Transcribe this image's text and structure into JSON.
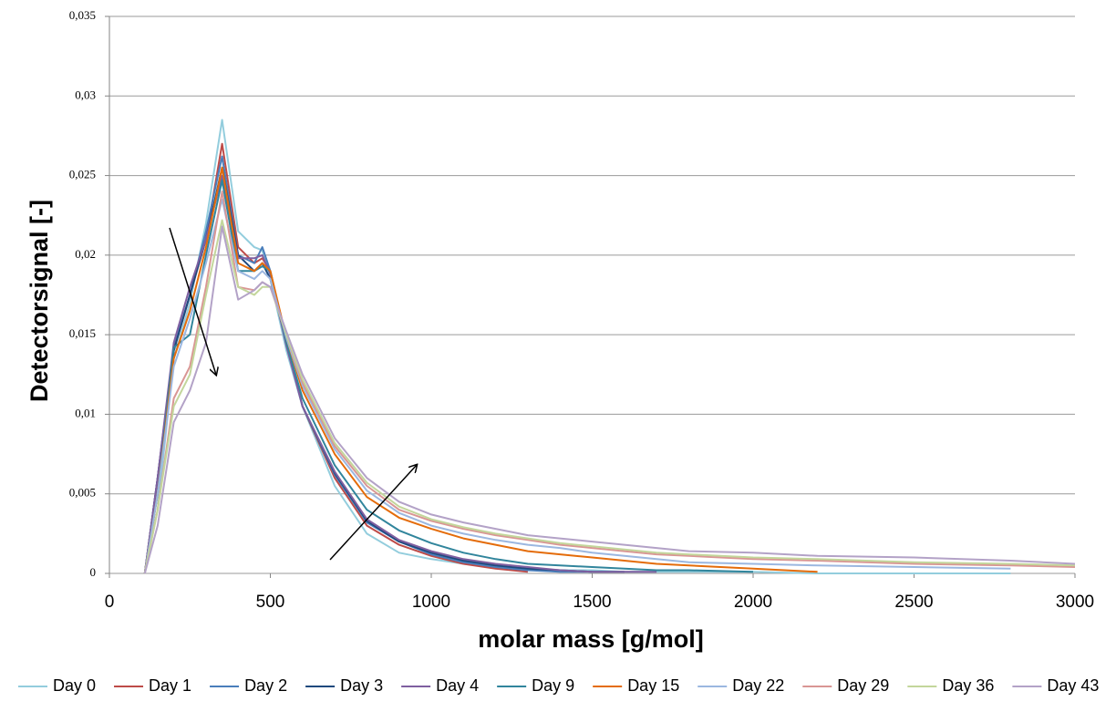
{
  "chart_data": {
    "type": "line",
    "x_label": "molar mass [g/mol]",
    "y_label": "Detectorsignal [-]",
    "xlim": [
      0,
      3000
    ],
    "xticks": [
      0,
      500,
      1000,
      1500,
      2000,
      2500,
      3000
    ],
    "ylim": [
      0,
      0.035
    ],
    "yticks": [
      0,
      {
        "value": 0.005,
        "label": "0,005"
      },
      {
        "value": 0.01,
        "label": "0,01"
      },
      {
        "value": 0.015,
        "label": "0,015"
      },
      {
        "value": 0.02,
        "label": "0,02"
      },
      {
        "value": 0.025,
        "label": "0,025"
      },
      {
        "value": 0.03,
        "label": "0,03"
      },
      {
        "value": 0.035,
        "label": "0,035"
      }
    ],
    "grid": true,
    "legend": "bottom",
    "x": [
      110,
      150,
      200,
      250,
      300,
      350,
      400,
      450,
      475,
      500,
      550,
      600,
      700,
      800,
      900,
      1000,
      1100,
      1200,
      1300,
      1400,
      1500,
      1600,
      1700,
      1800,
      2000,
      2200,
      2500,
      2800,
      3000
    ],
    "series": [
      {
        "name": "Day 0",
        "color": "#93cddd",
        "values": [
          null,
          0.004,
          0.0135,
          0.017,
          0.022,
          0.0285,
          0.0215,
          0.0205,
          0.0203,
          0.0185,
          0.014,
          0.0105,
          0.0055,
          0.0025,
          0.0013,
          0.0009,
          0.0006,
          0.0004,
          0.0003,
          0.0002,
          0.0002,
          0.0001,
          0.0001,
          0.0001,
          0.0001,
          0,
          0,
          0,
          null
        ]
      },
      {
        "name": "Day 1",
        "color": "#be4b48",
        "values": [
          0,
          0.006,
          0.014,
          0.0175,
          0.021,
          0.027,
          0.0205,
          0.0195,
          0.0198,
          0.019,
          0.0145,
          0.0105,
          0.006,
          0.003,
          0.0018,
          0.0011,
          0.0006,
          0.0003,
          0.0001,
          null,
          null,
          null,
          null,
          null,
          null,
          null,
          null,
          null,
          null
        ]
      },
      {
        "name": "Day 2",
        "color": "#4a7ebb",
        "values": [
          0,
          0.006,
          0.0142,
          0.0175,
          0.0215,
          0.0262,
          0.02,
          0.0195,
          0.0205,
          0.019,
          0.0145,
          0.0105,
          0.0062,
          0.0032,
          0.002,
          0.0012,
          0.0007,
          0.0004,
          0.0002,
          0.0001,
          0.0001,
          null,
          null,
          null,
          null,
          null,
          null,
          null,
          null
        ]
      },
      {
        "name": "Day 3",
        "color": "#1f497d",
        "values": [
          0,
          0.006,
          0.014,
          0.0175,
          0.021,
          0.0255,
          0.02,
          0.019,
          0.0195,
          0.0185,
          0.0145,
          0.0105,
          0.0063,
          0.0033,
          0.002,
          0.0013,
          0.0008,
          0.0005,
          0.0003,
          0.0002,
          0.0001,
          0.0001,
          null,
          null,
          null,
          null,
          null,
          null,
          null
        ]
      },
      {
        "name": "Day 4",
        "color": "#7f5fa0",
        "values": [
          0,
          0.006,
          0.0145,
          0.018,
          0.021,
          0.025,
          0.0198,
          0.0198,
          0.02,
          0.0188,
          0.0143,
          0.0105,
          0.0064,
          0.0034,
          0.0021,
          0.0014,
          0.0009,
          0.0006,
          0.0004,
          0.0002,
          0.0001,
          0.0001,
          0.0001,
          null,
          null,
          null,
          null,
          null,
          null
        ]
      },
      {
        "name": "Day 9",
        "color": "#31859c",
        "values": [
          0,
          0.005,
          0.0142,
          0.015,
          0.02,
          0.0247,
          0.019,
          0.019,
          0.0193,
          0.019,
          0.0145,
          0.011,
          0.0068,
          0.004,
          0.0027,
          0.0019,
          0.0013,
          0.0009,
          0.0006,
          0.0005,
          0.0004,
          0.0003,
          0.0002,
          0.0002,
          0.0001,
          null,
          null,
          null,
          null
        ]
      },
      {
        "name": "Day 15",
        "color": "#e46c0a",
        "values": [
          0,
          0.005,
          0.0135,
          0.0165,
          0.0205,
          0.0255,
          0.0195,
          0.019,
          0.0195,
          0.019,
          0.0148,
          0.0115,
          0.0075,
          0.0048,
          0.0035,
          0.0028,
          0.0022,
          0.0018,
          0.0014,
          0.0012,
          0.001,
          0.0008,
          0.0006,
          0.0005,
          0.0003,
          0.0001,
          null,
          null,
          null
        ]
      },
      {
        "name": "Day 22",
        "color": "#9bb7e0",
        "values": [
          0,
          0.005,
          0.013,
          0.016,
          0.0195,
          0.0235,
          0.019,
          0.0185,
          0.019,
          0.0185,
          0.0148,
          0.0118,
          0.0078,
          0.0052,
          0.0038,
          0.003,
          0.0025,
          0.0021,
          0.0018,
          0.0016,
          0.0013,
          0.0011,
          0.0009,
          0.0007,
          0.0006,
          0.0005,
          0.0004,
          0.0003,
          null
        ]
      },
      {
        "name": "Day 29",
        "color": "#d99694",
        "values": [
          0,
          0.004,
          0.011,
          0.013,
          0.018,
          0.024,
          0.018,
          0.0178,
          0.0183,
          0.018,
          0.015,
          0.012,
          0.008,
          0.0055,
          0.004,
          0.0033,
          0.0028,
          0.0024,
          0.0021,
          0.0018,
          0.0016,
          0.0014,
          0.0012,
          0.0011,
          0.0009,
          0.0008,
          0.0006,
          0.0005,
          0.0004
        ]
      },
      {
        "name": "Day 36",
        "color": "#c3d69b",
        "values": [
          0,
          0.004,
          0.0105,
          0.0125,
          0.0175,
          0.0222,
          0.018,
          0.0175,
          0.018,
          0.018,
          0.015,
          0.0122,
          0.0082,
          0.0057,
          0.0042,
          0.0034,
          0.0029,
          0.0025,
          0.0022,
          0.0019,
          0.0017,
          0.0015,
          0.0013,
          0.0012,
          0.001,
          0.0009,
          0.0007,
          0.0006,
          0.0005
        ]
      },
      {
        "name": "Day 43",
        "color": "#b3a2c7",
        "values": [
          0,
          0.003,
          0.0095,
          0.0115,
          0.0145,
          0.0218,
          0.0172,
          0.0178,
          0.0183,
          0.018,
          0.0152,
          0.0125,
          0.0085,
          0.006,
          0.0045,
          0.0037,
          0.0032,
          0.0028,
          0.0024,
          0.0022,
          0.002,
          0.0018,
          0.0016,
          0.0014,
          0.0013,
          0.0011,
          0.001,
          0.0008,
          0.0006
        ]
      }
    ]
  }
}
